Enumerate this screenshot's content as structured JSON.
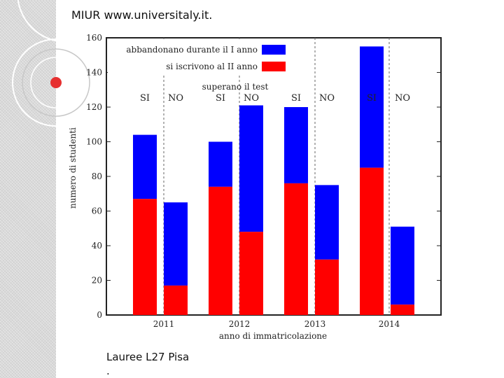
{
  "header": {
    "text": "MIUR www.universitaly.it."
  },
  "footer": {
    "line1": "Lauree L27 Pisa",
    "line2": "."
  },
  "colors": {
    "blue": "#0000ff",
    "red": "#ff0000",
    "background": "#ffffff",
    "accent_dot": "#e63030"
  },
  "chart_data": {
    "type": "bar",
    "stacked": true,
    "xlabel": "anno di immatricolazione",
    "ylabel": "numero di studenti",
    "ylim": [
      0,
      160
    ],
    "yticks": [
      0,
      20,
      40,
      60,
      80,
      100,
      120,
      140,
      160
    ],
    "years": [
      "2011",
      "2012",
      "2013",
      "2014"
    ],
    "group_labels": [
      "SI",
      "NO"
    ],
    "group_header": "superano il test",
    "grid": "vertical dashed separators",
    "legend_position": "top",
    "legend": [
      {
        "label": "abbandonano durante il I anno",
        "color": "#0000ff"
      },
      {
        "label": "si iscrivono al II anno",
        "color": "#ff0000"
      }
    ],
    "bars": [
      {
        "year": "2011",
        "group": "SI",
        "red": 67,
        "total": 104
      },
      {
        "year": "2011",
        "group": "NO",
        "red": 17,
        "total": 65
      },
      {
        "year": "2012",
        "group": "SI",
        "red": 74,
        "total": 100
      },
      {
        "year": "2012",
        "group": "NO",
        "red": 48,
        "total": 121
      },
      {
        "year": "2013",
        "group": "SI",
        "red": 76,
        "total": 120
      },
      {
        "year": "2013",
        "group": "NO",
        "red": 32,
        "total": 75
      },
      {
        "year": "2014",
        "group": "SI",
        "red": 85,
        "total": 155
      },
      {
        "year": "2014",
        "group": "NO",
        "red": 6,
        "total": 51
      }
    ]
  }
}
